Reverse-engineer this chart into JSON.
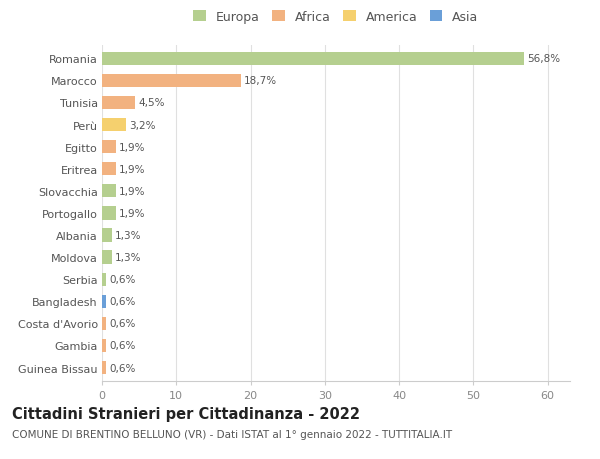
{
  "countries": [
    "Romania",
    "Marocco",
    "Tunisia",
    "Perù",
    "Egitto",
    "Eritrea",
    "Slovacchia",
    "Portogallo",
    "Albania",
    "Moldova",
    "Serbia",
    "Bangladesh",
    "Costa d'Avorio",
    "Gambia",
    "Guinea Bissau"
  ],
  "values": [
    56.8,
    18.7,
    4.5,
    3.2,
    1.9,
    1.9,
    1.9,
    1.9,
    1.3,
    1.3,
    0.6,
    0.6,
    0.6,
    0.6,
    0.6
  ],
  "labels": [
    "56,8%",
    "18,7%",
    "4,5%",
    "3,2%",
    "1,9%",
    "1,9%",
    "1,9%",
    "1,9%",
    "1,3%",
    "1,3%",
    "0,6%",
    "0,6%",
    "0,6%",
    "0,6%",
    "0,6%"
  ],
  "colors": [
    "#b5cf8f",
    "#f2b280",
    "#f2b280",
    "#f5d06e",
    "#f2b280",
    "#f2b280",
    "#b5cf8f",
    "#b5cf8f",
    "#b5cf8f",
    "#b5cf8f",
    "#b5cf8f",
    "#6a9fd8",
    "#f2b280",
    "#f2b280",
    "#f2b280"
  ],
  "legend_labels": [
    "Europa",
    "Africa",
    "America",
    "Asia"
  ],
  "legend_colors": [
    "#b5cf8f",
    "#f2b280",
    "#f5d06e",
    "#6a9fd8"
  ],
  "xlim": [
    0,
    63
  ],
  "xticks": [
    0,
    10,
    20,
    30,
    40,
    50,
    60
  ],
  "title_main": "Cittadini Stranieri per Cittadinanza - 2022",
  "title_sub": "COMUNE DI BRENTINO BELLUNO (VR) - Dati ISTAT al 1° gennaio 2022 - TUTTITALIA.IT",
  "bg_color": "#ffffff",
  "grid_color": "#e0e0e0",
  "bar_height": 0.6,
  "label_fontsize": 7.5,
  "ytick_fontsize": 8,
  "xtick_fontsize": 8,
  "legend_fontsize": 9,
  "title_fontsize": 10.5,
  "subtitle_fontsize": 7.5
}
